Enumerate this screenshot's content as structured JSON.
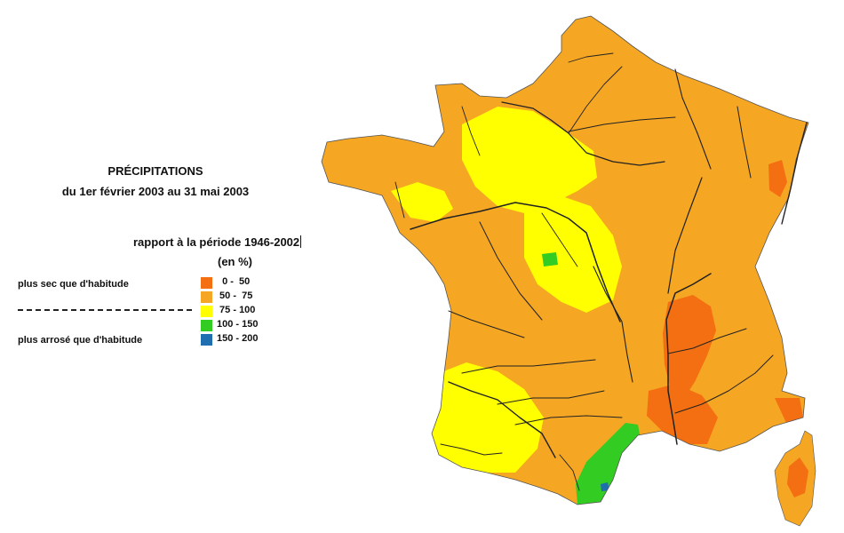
{
  "title": "PRÉCIPITATIONS",
  "period": "du 1er février 2003 au 31 mai 2003",
  "reference": "rapport à la période  1946-2002",
  "unit": "(en %)",
  "legend": {
    "drier_label": "plus sec que d'habitude",
    "wetter_label": "plus arrosé que d'habitude",
    "divider": "-----------------------------------",
    "classes": [
      {
        "range": "  0 -  50",
        "color": "#f36f12"
      },
      {
        "range": " 50 -  75",
        "color": "#f5a623"
      },
      {
        "range": " 75 - 100",
        "color": "#ffff00"
      },
      {
        "range": "100 - 150",
        "color": "#33cc22"
      },
      {
        "range": "150 - 200",
        "color": "#1f6fb0"
      }
    ]
  },
  "map": {
    "region": "France",
    "colors": {
      "dry_0_50": "#f36f12",
      "dry_50_75": "#f5a623",
      "normal_75_100": "#ffff00",
      "wet_100_150": "#33cc22",
      "wet_150_200": "#1f6fb0",
      "river": "#222222"
    }
  }
}
